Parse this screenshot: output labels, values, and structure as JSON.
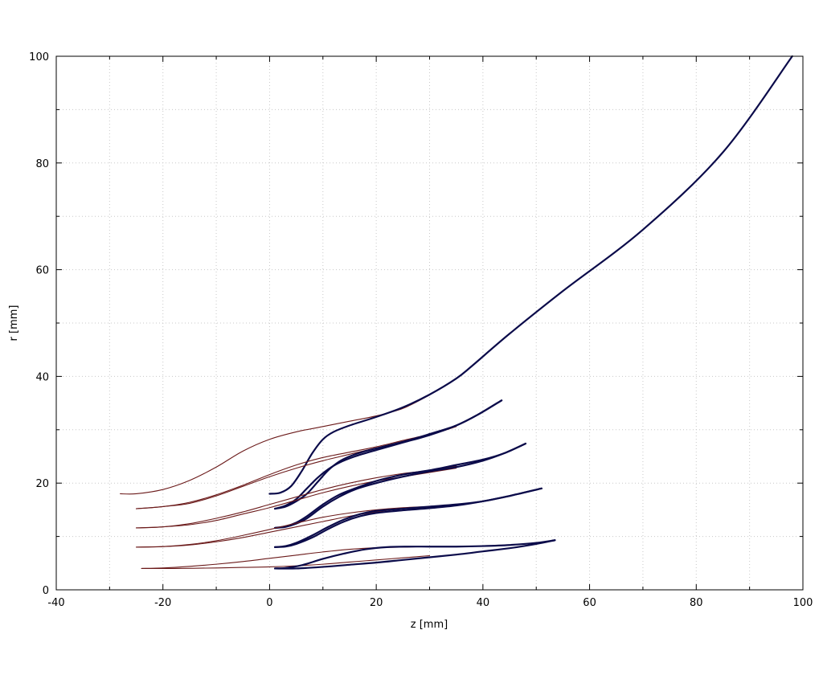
{
  "chart_data": {
    "type": "line",
    "title": "",
    "xlabel": "z [mm]",
    "ylabel": "r [mm]",
    "xlim": [
      -40,
      100
    ],
    "ylim": [
      0,
      100
    ],
    "xticks": [
      -40,
      -20,
      0,
      20,
      40,
      60,
      80,
      100
    ],
    "yticks": [
      0,
      20,
      40,
      60,
      80,
      100
    ],
    "xtick_labels": [
      "-40",
      "-20",
      "0",
      "20",
      "40",
      "60",
      "80",
      "100"
    ],
    "ytick_labels": [
      "0",
      "20",
      "40",
      "60",
      "80",
      "100"
    ],
    "grid": true,
    "legend": "none",
    "colors": {
      "thin": "#6b1a1a",
      "thick": "#0b0b4a"
    },
    "series": [
      {
        "style": "thin",
        "points": [
          [
            -28,
            18
          ],
          [
            -25,
            18
          ],
          [
            -20,
            18.8
          ],
          [
            -15,
            20.5
          ],
          [
            -10,
            23
          ],
          [
            -5,
            26
          ],
          [
            0,
            28.2
          ],
          [
            5,
            29.6
          ],
          [
            10,
            30.6
          ],
          [
            15,
            31.6
          ],
          [
            20,
            32.6
          ],
          [
            25,
            34
          ],
          [
            30,
            36.5
          ]
        ]
      },
      {
        "style": "thick",
        "points": [
          [
            0,
            18
          ],
          [
            2,
            18.2
          ],
          [
            4,
            19.4
          ],
          [
            6,
            22.2
          ],
          [
            8,
            25.6
          ],
          [
            10,
            28.2
          ],
          [
            12,
            29.6
          ],
          [
            15,
            30.8
          ],
          [
            20,
            32.4
          ],
          [
            25,
            34.2
          ],
          [
            30,
            36.6
          ],
          [
            35,
            39.6
          ],
          [
            38,
            42
          ],
          [
            45,
            48
          ],
          [
            55,
            56
          ],
          [
            70,
            67.5
          ],
          [
            85,
            82
          ],
          [
            98,
            100
          ]
        ]
      },
      {
        "style": "thin",
        "points": [
          [
            -25,
            15.2
          ],
          [
            -20,
            15.6
          ],
          [
            -15,
            16.4
          ],
          [
            -10,
            17.8
          ],
          [
            -5,
            19.6
          ],
          [
            0,
            21.6
          ],
          [
            5,
            23.4
          ],
          [
            10,
            24.8
          ],
          [
            15,
            25.8
          ],
          [
            20,
            26.8
          ],
          [
            25,
            28
          ],
          [
            30,
            29.2
          ],
          [
            35,
            30.8
          ]
        ]
      },
      {
        "style": "thin",
        "points": [
          [
            -25,
            15.2
          ],
          [
            -20,
            15.6
          ],
          [
            -15,
            16.2
          ],
          [
            -10,
            17.6
          ],
          [
            -5,
            19.4
          ],
          [
            0,
            21.2
          ],
          [
            5,
            22.8
          ],
          [
            10,
            24.2
          ],
          [
            15,
            25.4
          ],
          [
            20,
            26.6
          ],
          [
            25,
            27.8
          ],
          [
            30,
            29
          ],
          [
            35,
            30.6
          ]
        ]
      },
      {
        "style": "thick",
        "points": [
          [
            1,
            15.2
          ],
          [
            3,
            15.6
          ],
          [
            5,
            16.6
          ],
          [
            7,
            18
          ],
          [
            9,
            20.2
          ],
          [
            11,
            22.4
          ],
          [
            13,
            24
          ],
          [
            15,
            25
          ],
          [
            18,
            26
          ],
          [
            22,
            27
          ],
          [
            26,
            28
          ],
          [
            30,
            29.2
          ],
          [
            35,
            30.8
          ],
          [
            39,
            32.8
          ],
          [
            43.5,
            35.5
          ]
        ]
      },
      {
        "style": "thick",
        "points": [
          [
            1,
            15.2
          ],
          [
            3,
            15.8
          ],
          [
            5,
            17
          ],
          [
            7,
            19
          ],
          [
            9,
            21
          ],
          [
            11,
            22.6
          ],
          [
            13,
            23.8
          ],
          [
            16,
            25
          ],
          [
            20,
            26.2
          ],
          [
            25,
            27.6
          ],
          [
            30,
            29
          ],
          [
            35,
            30.8
          ],
          [
            39,
            32.8
          ],
          [
            43.5,
            35.5
          ]
        ]
      },
      {
        "style": "thin",
        "points": [
          [
            -25,
            11.6
          ],
          [
            -20,
            11.8
          ],
          [
            -15,
            12.4
          ],
          [
            -10,
            13.4
          ],
          [
            -5,
            14.6
          ],
          [
            0,
            16
          ],
          [
            5,
            17.4
          ],
          [
            10,
            18.8
          ],
          [
            15,
            20
          ],
          [
            20,
            21
          ],
          [
            25,
            21.8
          ],
          [
            30,
            22.4
          ],
          [
            35,
            23.2
          ]
        ]
      },
      {
        "style": "thin",
        "points": [
          [
            -25,
            11.6
          ],
          [
            -20,
            11.8
          ],
          [
            -15,
            12.2
          ],
          [
            -10,
            13
          ],
          [
            -5,
            14.2
          ],
          [
            0,
            15.4
          ],
          [
            5,
            16.8
          ],
          [
            10,
            18.2
          ],
          [
            15,
            19.4
          ],
          [
            20,
            20.4
          ],
          [
            25,
            21.2
          ],
          [
            30,
            22
          ],
          [
            35,
            22.8
          ]
        ]
      },
      {
        "style": "thick",
        "points": [
          [
            1,
            11.6
          ],
          [
            3,
            11.8
          ],
          [
            5,
            12.4
          ],
          [
            7,
            13.4
          ],
          [
            10,
            15.6
          ],
          [
            13,
            17.4
          ],
          [
            16,
            18.8
          ],
          [
            20,
            20
          ],
          [
            25,
            21.2
          ],
          [
            30,
            22.2
          ],
          [
            35,
            23
          ],
          [
            40,
            24.2
          ],
          [
            44,
            25.6
          ],
          [
            48,
            27.4
          ]
        ]
      },
      {
        "style": "thick",
        "points": [
          [
            1,
            11.6
          ],
          [
            3,
            11.9
          ],
          [
            5,
            12.6
          ],
          [
            7,
            13.8
          ],
          [
            10,
            16
          ],
          [
            13,
            17.8
          ],
          [
            16,
            19
          ],
          [
            20,
            20.4
          ],
          [
            25,
            21.6
          ],
          [
            30,
            22.4
          ],
          [
            35,
            23.4
          ],
          [
            40,
            24.4
          ],
          [
            44,
            25.6
          ],
          [
            48,
            27.4
          ]
        ]
      },
      {
        "style": "thin",
        "points": [
          [
            -25,
            8
          ],
          [
            -20,
            8.1
          ],
          [
            -15,
            8.5
          ],
          [
            -10,
            9.2
          ],
          [
            -5,
            10.2
          ],
          [
            0,
            11.3
          ],
          [
            5,
            12.5
          ],
          [
            10,
            13.6
          ],
          [
            15,
            14.4
          ],
          [
            20,
            15
          ],
          [
            25,
            15.4
          ],
          [
            30,
            15.6
          ],
          [
            35,
            15.9
          ]
        ]
      },
      {
        "style": "thin",
        "points": [
          [
            -25,
            8
          ],
          [
            -20,
            8.1
          ],
          [
            -15,
            8.4
          ],
          [
            -10,
            9
          ],
          [
            -5,
            9.8
          ],
          [
            0,
            10.8
          ],
          [
            5,
            11.8
          ],
          [
            10,
            12.8
          ],
          [
            15,
            13.8
          ],
          [
            20,
            14.6
          ],
          [
            25,
            15.2
          ],
          [
            30,
            15.5
          ],
          [
            35,
            15.8
          ]
        ]
      },
      {
        "style": "thick",
        "points": [
          [
            1,
            8
          ],
          [
            3,
            8.1
          ],
          [
            5,
            8.6
          ],
          [
            8,
            9.8
          ],
          [
            11,
            11.4
          ],
          [
            14,
            12.8
          ],
          [
            17,
            13.8
          ],
          [
            20,
            14.4
          ],
          [
            25,
            14.9
          ],
          [
            30,
            15.3
          ],
          [
            35,
            15.8
          ],
          [
            40,
            16.6
          ],
          [
            45,
            17.6
          ],
          [
            51,
            19
          ]
        ]
      },
      {
        "style": "thick",
        "points": [
          [
            1,
            8
          ],
          [
            3,
            8.2
          ],
          [
            5,
            8.8
          ],
          [
            8,
            10.2
          ],
          [
            11,
            11.8
          ],
          [
            14,
            13.2
          ],
          [
            17,
            14.2
          ],
          [
            20,
            14.8
          ],
          [
            25,
            15.2
          ],
          [
            30,
            15.6
          ],
          [
            35,
            16
          ],
          [
            40,
            16.6
          ],
          [
            45,
            17.6
          ],
          [
            51,
            19
          ]
        ]
      },
      {
        "style": "thin",
        "points": [
          [
            -24,
            4
          ],
          [
            -20,
            4.1
          ],
          [
            -15,
            4.4
          ],
          [
            -10,
            4.8
          ],
          [
            -5,
            5.3
          ],
          [
            0,
            5.9
          ],
          [
            5,
            6.5
          ],
          [
            10,
            7.1
          ],
          [
            15,
            7.6
          ],
          [
            20,
            7.9
          ],
          [
            25,
            8
          ],
          [
            30,
            8.1
          ],
          [
            35,
            8.1
          ]
        ]
      },
      {
        "style": "thin",
        "points": [
          [
            -24,
            4
          ],
          [
            -18,
            4
          ],
          [
            -10,
            4.1
          ],
          [
            -5,
            4.2
          ],
          [
            0,
            4.3
          ],
          [
            5,
            4.5
          ],
          [
            10,
            4.8
          ],
          [
            15,
            5.2
          ],
          [
            20,
            5.6
          ],
          [
            25,
            6
          ],
          [
            30,
            6.4
          ]
        ]
      },
      {
        "style": "thick",
        "points": [
          [
            1,
            4
          ],
          [
            3,
            4.1
          ],
          [
            6,
            4.6
          ],
          [
            10,
            5.8
          ],
          [
            14,
            6.8
          ],
          [
            18,
            7.6
          ],
          [
            22,
            8
          ],
          [
            26,
            8.1
          ],
          [
            30,
            8.1
          ],
          [
            35,
            8.1
          ],
          [
            40,
            8.2
          ],
          [
            45,
            8.4
          ],
          [
            50,
            8.8
          ],
          [
            53.5,
            9.3
          ]
        ]
      },
      {
        "style": "thick",
        "points": [
          [
            1,
            4
          ],
          [
            5,
            4
          ],
          [
            10,
            4.3
          ],
          [
            15,
            4.7
          ],
          [
            20,
            5.1
          ],
          [
            25,
            5.6
          ],
          [
            30,
            6.1
          ],
          [
            35,
            6.6
          ],
          [
            40,
            7.2
          ],
          [
            45,
            7.8
          ],
          [
            50,
            8.6
          ],
          [
            53.5,
            9.3
          ]
        ]
      }
    ]
  }
}
